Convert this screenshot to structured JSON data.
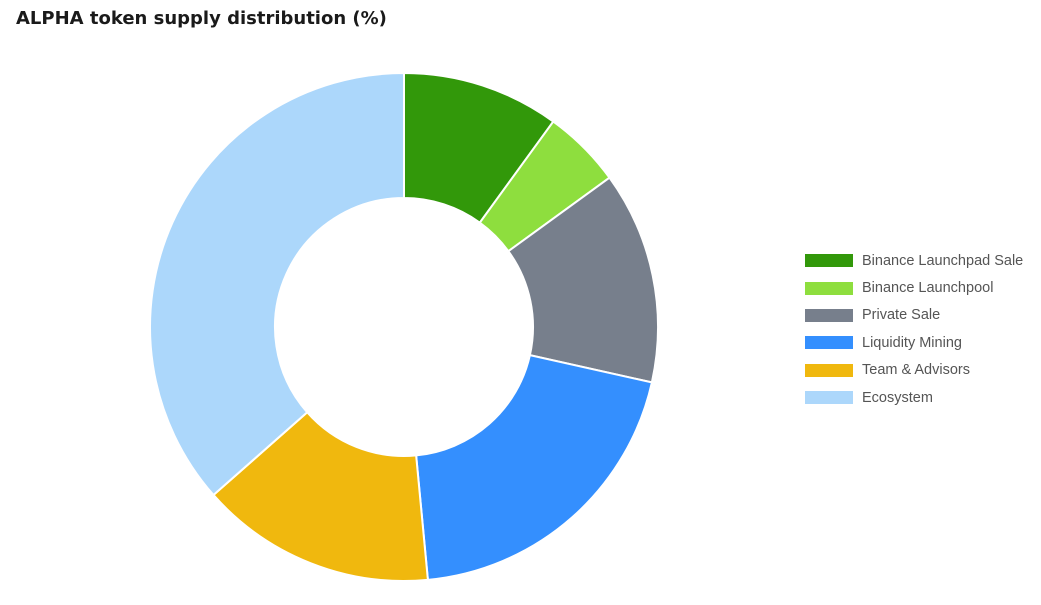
{
  "chart_data": {
    "type": "pie",
    "title": "ALPHA token supply distribution (%)",
    "donut": true,
    "legend_position": "right",
    "categories": [
      "Binance Launchpad Sale",
      "Binance Launchpool",
      "Private Sale",
      "Liquidity Mining",
      "Team & Advisors",
      "Ecosystem"
    ],
    "values": [
      10,
      5,
      13.5,
      20,
      15,
      36.5
    ],
    "colors": [
      "#32980a",
      "#8ede3e",
      "#777f8c",
      "#348ffe",
      "#f0b80e",
      "#acd7fb"
    ]
  }
}
